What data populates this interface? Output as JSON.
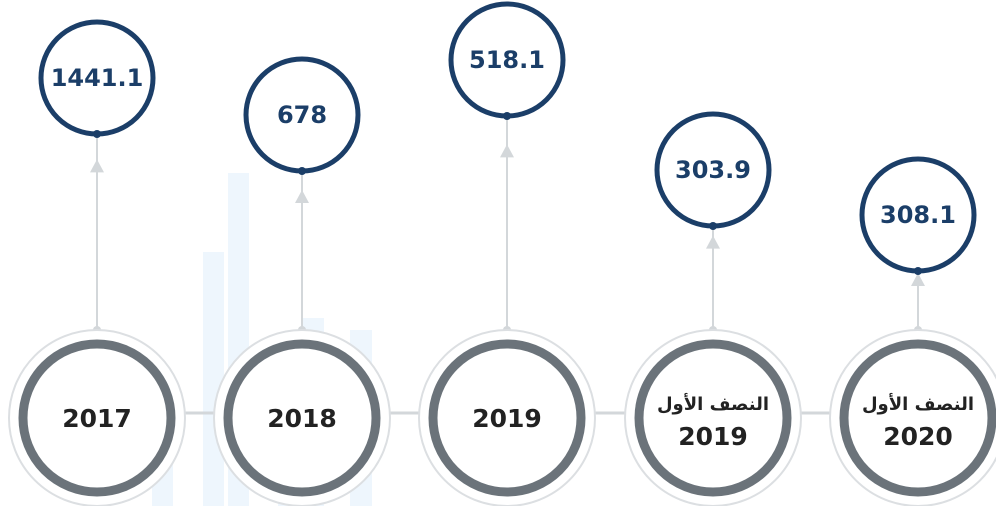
{
  "nodes": [
    {
      "lines": [
        "2017"
      ],
      "value": 1441.1
    },
    {
      "lines": [
        "2018"
      ],
      "value": 678
    },
    {
      "lines": [
        "2019"
      ],
      "value": 518.1
    },
    {
      "lines": [
        "النصف الأول",
        "2019"
      ],
      "value": 303.9
    },
    {
      "lines": [
        "النصف الأول",
        "2020"
      ],
      "value": 308.1
    }
  ]
}
